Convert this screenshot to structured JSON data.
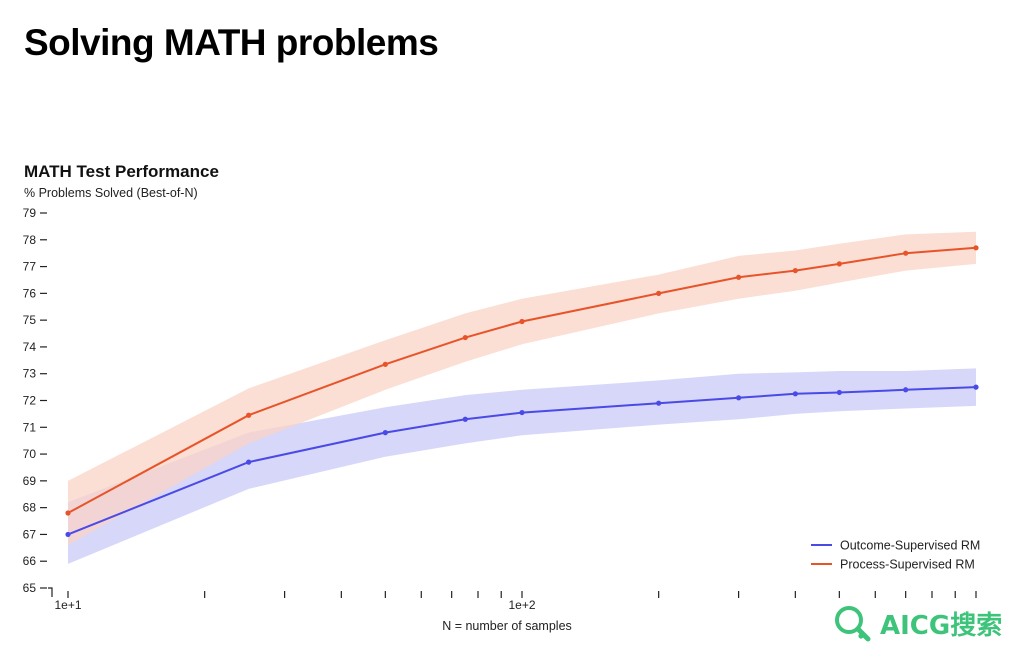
{
  "page": {
    "title": "Solving MATH problems"
  },
  "watermark": {
    "text": "AICG搜索",
    "color": "#3ec47a"
  },
  "chart_data": {
    "type": "line",
    "title": "MATH Test Performance",
    "ylabel": "% Problems Solved (Best-of-N)",
    "xlabel": "N = number of samples",
    "x_scale": "log",
    "xlim": [
      10,
      1000
    ],
    "ylim": [
      65,
      79
    ],
    "y_ticks": [
      65,
      66,
      67,
      68,
      69,
      70,
      71,
      72,
      73,
      74,
      75,
      76,
      77,
      78,
      79
    ],
    "x_major_ticks": [
      {
        "value": 10,
        "label": "1e+1"
      },
      {
        "value": 100,
        "label": "1e+2"
      }
    ],
    "x_minor_ticks": [
      20,
      30,
      40,
      50,
      60,
      70,
      80,
      90,
      200,
      300,
      400,
      500,
      600,
      700,
      800,
      900,
      1000
    ],
    "grid": false,
    "legend_position": "bottom-right",
    "x": [
      10,
      25,
      50,
      75,
      100,
      200,
      300,
      400,
      500,
      700,
      1000
    ],
    "series": [
      {
        "name": "Outcome-Supervised RM",
        "color": "#4a4ae6",
        "band_color": "#c9c9f7",
        "values": [
          67.0,
          69.7,
          70.8,
          71.3,
          71.55,
          71.9,
          72.1,
          72.25,
          72.3,
          72.4,
          72.5
        ],
        "lower": [
          65.9,
          68.7,
          69.9,
          70.4,
          70.7,
          71.1,
          71.3,
          71.5,
          71.6,
          71.7,
          71.8
        ],
        "upper": [
          68.2,
          70.8,
          71.75,
          72.2,
          72.4,
          72.75,
          73.0,
          73.05,
          73.1,
          73.1,
          73.2
        ]
      },
      {
        "name": "Process-Supervised RM",
        "color": "#e8542a",
        "band_color": "#f9d3c6",
        "values": [
          67.8,
          71.45,
          73.35,
          74.35,
          74.95,
          76.0,
          76.6,
          76.85,
          77.1,
          77.5,
          77.7
        ],
        "lower": [
          66.6,
          70.4,
          72.4,
          73.45,
          74.1,
          75.25,
          75.8,
          76.1,
          76.4,
          76.85,
          77.1
        ],
        "upper": [
          69.0,
          72.45,
          74.25,
          75.25,
          75.8,
          76.7,
          77.4,
          77.6,
          77.85,
          78.2,
          78.3
        ]
      }
    ]
  }
}
